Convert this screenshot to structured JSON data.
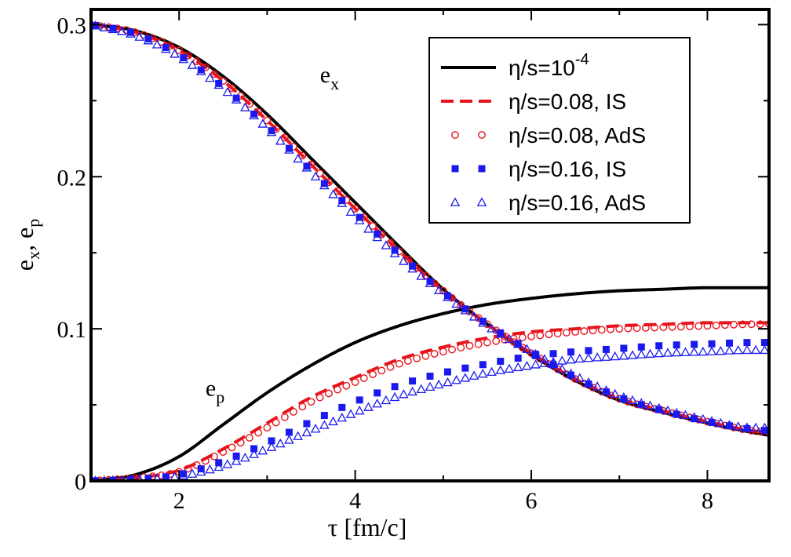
{
  "chart_data": {
    "type": "line",
    "title": "",
    "xlabel": "τ  [fm/c]",
    "ylabel": "e_x, e_p",
    "ylabel_main": "e",
    "ylabel_sub1": "x",
    "ylabel_comma": ", e",
    "ylabel_sub2": "p",
    "xlim": [
      1,
      8.7
    ],
    "ylim": [
      0,
      0.31
    ],
    "x_ticks": [
      2,
      4,
      6,
      8
    ],
    "x_tick_labels": [
      "2",
      "4",
      "6",
      "8"
    ],
    "y_ticks": [
      0,
      0.1,
      0.2,
      0.3
    ],
    "y_tick_labels": [
      "0",
      "0.1",
      "0.2",
      "0.3"
    ],
    "legend_position": "top-right",
    "annotations": [
      {
        "main": "e",
        "sub": "x",
        "x": 3.6,
        "y": 0.262
      },
      {
        "main": "e",
        "sub": "p",
        "x": 2.3,
        "y": 0.056
      }
    ],
    "series": [
      {
        "name": "η/s=10^-4",
        "legend_main": "η/s=10",
        "legend_sup": "-4",
        "style": "solid",
        "color": "#000000",
        "ex": {
          "x": [
            1.0,
            1.5,
            2.0,
            2.5,
            3.0,
            3.5,
            4.0,
            4.5,
            5.0,
            5.5,
            6.0,
            6.5,
            7.0,
            7.5,
            8.0,
            8.5,
            8.7
          ],
          "y": [
            0.3,
            0.296,
            0.285,
            0.266,
            0.241,
            0.212,
            0.183,
            0.154,
            0.126,
            0.103,
            0.083,
            0.066,
            0.053,
            0.045,
            0.038,
            0.032,
            0.03
          ]
        },
        "ep": {
          "x": [
            1.0,
            1.5,
            2.0,
            2.5,
            3.0,
            3.5,
            4.0,
            4.5,
            5.0,
            5.5,
            6.0,
            6.5,
            7.0,
            7.5,
            8.0,
            8.5,
            8.7
          ],
          "y": [
            0.0,
            0.004,
            0.016,
            0.037,
            0.058,
            0.076,
            0.091,
            0.102,
            0.11,
            0.116,
            0.12,
            0.123,
            0.125,
            0.126,
            0.127,
            0.127,
            0.127
          ]
        }
      },
      {
        "name": "η/s=0.08, IS",
        "legend_main": "η/s=0.08, IS",
        "style": "dashed",
        "color": "#e8141c",
        "ex": {
          "x": [
            1.0,
            1.5,
            2.0,
            2.5,
            3.0,
            3.5,
            4.0,
            4.5,
            5.0,
            5.5,
            6.0,
            6.5,
            7.0,
            7.5,
            8.0,
            8.5,
            8.7
          ],
          "y": [
            0.3,
            0.295,
            0.283,
            0.263,
            0.237,
            0.208,
            0.179,
            0.151,
            0.125,
            0.103,
            0.084,
            0.067,
            0.054,
            0.046,
            0.039,
            0.033,
            0.032
          ]
        },
        "ep": {
          "x": [
            1.0,
            1.5,
            2.0,
            2.5,
            3.0,
            3.5,
            4.0,
            4.5,
            5.0,
            5.5,
            6.0,
            6.5,
            7.0,
            7.5,
            8.0,
            8.5,
            8.7
          ],
          "y": [
            0.0,
            0.002,
            0.007,
            0.021,
            0.038,
            0.055,
            0.068,
            0.08,
            0.088,
            0.094,
            0.098,
            0.1,
            0.102,
            0.103,
            0.104,
            0.104,
            0.104
          ]
        }
      },
      {
        "name": "η/s=0.08, AdS",
        "legend_main": "η/s=0.08, AdS",
        "style": "open-circle",
        "color": "#e8141c",
        "ex": {
          "x": [
            1.0,
            1.5,
            2.0,
            2.5,
            3.0,
            3.5,
            4.0,
            4.5,
            5.0,
            5.5,
            6.0,
            6.5,
            7.0,
            7.5,
            8.0,
            8.5,
            8.7
          ],
          "y": [
            0.3,
            0.295,
            0.283,
            0.263,
            0.237,
            0.208,
            0.179,
            0.151,
            0.125,
            0.103,
            0.084,
            0.067,
            0.054,
            0.046,
            0.039,
            0.033,
            0.032
          ]
        },
        "ep": {
          "x": [
            1.0,
            1.5,
            2.0,
            2.5,
            3.0,
            3.5,
            4.0,
            4.5,
            5.0,
            5.5,
            6.0,
            6.5,
            7.0,
            7.5,
            8.0,
            8.5,
            8.7
          ],
          "y": [
            0.0,
            0.002,
            0.006,
            0.019,
            0.035,
            0.052,
            0.065,
            0.077,
            0.085,
            0.091,
            0.095,
            0.098,
            0.1,
            0.101,
            0.102,
            0.103,
            0.103
          ]
        }
      },
      {
        "name": "η/s=0.16, IS",
        "legend_main": "η/s=0.16, IS",
        "style": "filled-square",
        "color": "#1a1aee",
        "ex": {
          "x": [
            1.0,
            1.5,
            2.0,
            2.5,
            3.0,
            3.5,
            4.0,
            4.5,
            5.0,
            5.5,
            6.0,
            6.5,
            7.0,
            7.5,
            8.0,
            8.5,
            8.7
          ],
          "y": [
            0.3,
            0.294,
            0.28,
            0.259,
            0.233,
            0.204,
            0.176,
            0.149,
            0.124,
            0.103,
            0.085,
            0.068,
            0.055,
            0.046,
            0.039,
            0.034,
            0.033
          ]
        },
        "ep": {
          "x": [
            1.0,
            1.5,
            2.0,
            2.5,
            3.0,
            3.5,
            4.0,
            4.5,
            5.0,
            5.5,
            6.0,
            6.5,
            7.0,
            7.5,
            8.0,
            8.5,
            8.7
          ],
          "y": [
            0.0,
            0.001,
            0.004,
            0.013,
            0.025,
            0.039,
            0.052,
            0.063,
            0.071,
            0.077,
            0.082,
            0.085,
            0.087,
            0.089,
            0.09,
            0.091,
            0.091
          ]
        }
      },
      {
        "name": "η/s=0.16, AdS",
        "legend_main": "η/s=0.16, AdS",
        "style": "open-triangle",
        "color": "#1a1aee",
        "ex": {
          "x": [
            1.0,
            1.5,
            2.0,
            2.5,
            3.0,
            3.5,
            4.0,
            4.5,
            5.0,
            5.5,
            6.0,
            6.5,
            7.0,
            7.5,
            8.0,
            8.5,
            8.7
          ],
          "y": [
            0.3,
            0.293,
            0.279,
            0.258,
            0.232,
            0.203,
            0.174,
            0.147,
            0.123,
            0.102,
            0.085,
            0.069,
            0.056,
            0.047,
            0.04,
            0.035,
            0.035
          ]
        },
        "ep": {
          "x": [
            1.0,
            1.5,
            2.0,
            2.5,
            3.0,
            3.5,
            4.0,
            4.5,
            5.0,
            5.5,
            6.0,
            6.5,
            7.0,
            7.5,
            8.0,
            8.5,
            8.7
          ],
          "y": [
            0.0,
            0.001,
            0.003,
            0.01,
            0.021,
            0.033,
            0.045,
            0.056,
            0.064,
            0.071,
            0.076,
            0.08,
            0.082,
            0.084,
            0.085,
            0.086,
            0.086
          ]
        }
      }
    ]
  }
}
